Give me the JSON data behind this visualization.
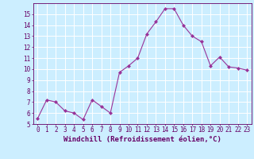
{
  "x": [
    0,
    1,
    2,
    3,
    4,
    5,
    6,
    7,
    8,
    9,
    10,
    11,
    12,
    13,
    14,
    15,
    16,
    17,
    18,
    19,
    20,
    21,
    22,
    23
  ],
  "y": [
    5.5,
    7.2,
    7.0,
    6.2,
    6.0,
    5.4,
    7.2,
    6.6,
    6.0,
    9.7,
    10.3,
    11.0,
    13.2,
    14.3,
    15.5,
    15.5,
    14.0,
    13.0,
    12.5,
    10.3,
    11.1,
    10.2,
    10.1,
    9.9
  ],
  "line_color": "#993399",
  "marker": "D",
  "marker_size": 2,
  "background_color": "#cceeff",
  "grid_color": "#ffffff",
  "xlabel": "Windchill (Refroidissement éolien,°C)",
  "ylim": [
    5,
    16
  ],
  "xlim": [
    -0.5,
    23.5
  ],
  "yticks": [
    5,
    6,
    7,
    8,
    9,
    10,
    11,
    12,
    13,
    14,
    15
  ],
  "xticks": [
    0,
    1,
    2,
    3,
    4,
    5,
    6,
    7,
    8,
    9,
    10,
    11,
    12,
    13,
    14,
    15,
    16,
    17,
    18,
    19,
    20,
    21,
    22,
    23
  ],
  "tick_fontsize": 5.5,
  "xlabel_fontsize": 6.5,
  "tick_color": "#660066",
  "axis_color": "#660066",
  "linewidth": 0.8
}
